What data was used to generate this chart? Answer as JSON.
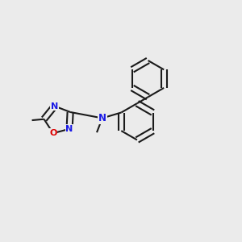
{
  "bg": "#ebebeb",
  "bc": "#1a1a1a",
  "nc": "#1a1ae6",
  "oc": "#dd0000",
  "lw": 1.5,
  "dbo": 0.013,
  "fs": 8.0,
  "figsize": [
    3.0,
    3.0
  ],
  "dpi": 100,
  "xlim": [
    -0.05,
    1.05
  ],
  "ylim": [
    -0.05,
    1.05
  ]
}
